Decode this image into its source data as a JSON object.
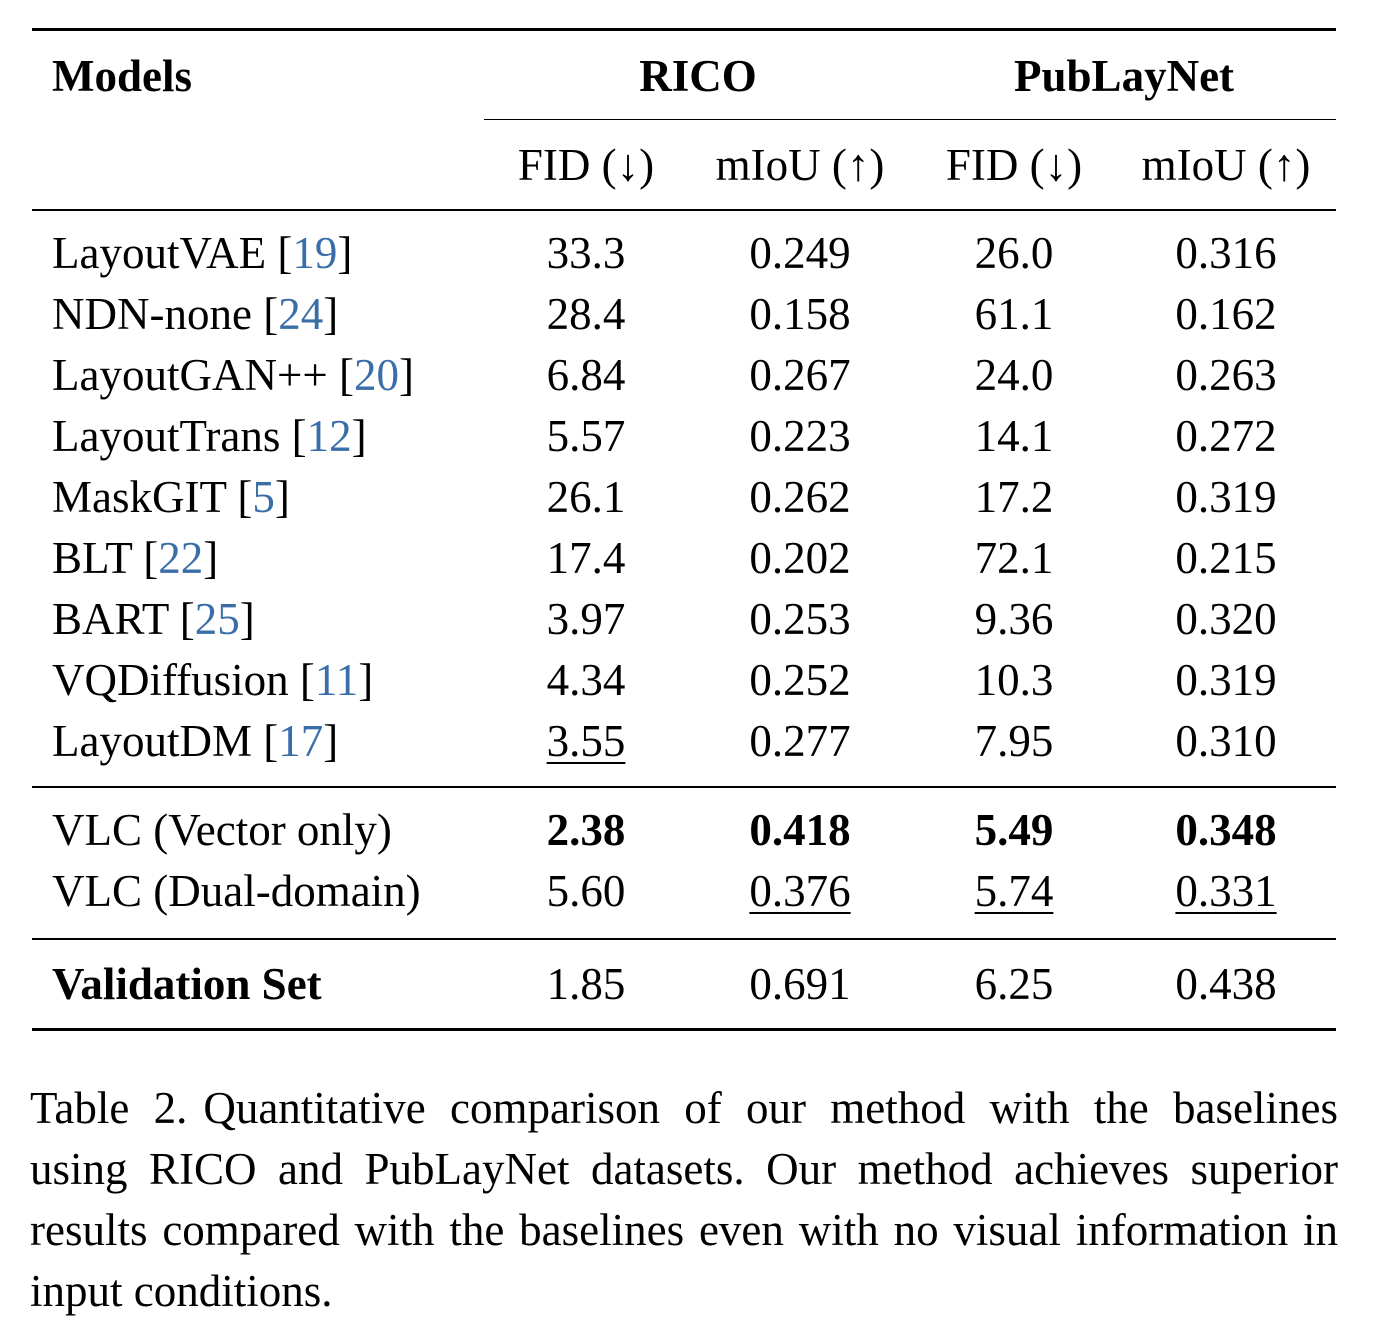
{
  "table": {
    "header": {
      "models_label": "Models",
      "groups": [
        "RICO",
        "PubLayNet"
      ],
      "metrics": [
        "FID (↓)",
        "mIoU (↑)",
        "FID (↓)",
        "mIoU (↑)"
      ]
    },
    "baselines": [
      {
        "name": "LayoutVAE ",
        "ref": "19",
        "values": [
          "33.3",
          "0.249",
          "26.0",
          "0.316"
        ]
      },
      {
        "name": "NDN-none ",
        "ref": "24",
        "values": [
          "28.4",
          "0.158",
          "61.1",
          "0.162"
        ]
      },
      {
        "name": "LayoutGAN++ ",
        "ref": "20",
        "values": [
          "6.84",
          "0.267",
          "24.0",
          "0.263"
        ]
      },
      {
        "name": "LayoutTrans ",
        "ref": "12",
        "values": [
          "5.57",
          "0.223",
          "14.1",
          "0.272"
        ]
      },
      {
        "name": "MaskGIT ",
        "ref": "5",
        "values": [
          "26.1",
          "0.262",
          "17.2",
          "0.319"
        ]
      },
      {
        "name": "BLT ",
        "ref": "22",
        "values": [
          "17.4",
          "0.202",
          "72.1",
          "0.215"
        ]
      },
      {
        "name": "BART ",
        "ref": "25",
        "values": [
          "3.97",
          "0.253",
          "9.36",
          "0.320"
        ]
      },
      {
        "name": "VQDiffusion ",
        "ref": "11",
        "values": [
          "4.34",
          "0.252",
          "10.3",
          "0.319"
        ]
      },
      {
        "name": "LayoutDM ",
        "ref": "17",
        "values": [
          "3.55",
          "0.277",
          "7.95",
          "0.310"
        ]
      }
    ],
    "ours": [
      {
        "name": "VLC (Vector only)",
        "values": [
          "2.38",
          "0.418",
          "5.49",
          "0.348"
        ]
      },
      {
        "name": "VLC (Dual-domain)",
        "values": [
          "5.60",
          "0.376",
          "5.74",
          "0.331"
        ]
      }
    ],
    "validation": {
      "name": "Validation Set",
      "values": [
        "1.85",
        "0.691",
        "6.25",
        "0.438"
      ]
    }
  },
  "caption": {
    "label": "Table 2.",
    "text": "Quantitative comparison of our method with the baselines using RICO and PubLayNet datasets. Our method achieves superior results compared with the baselines even with no visual information in input conditions."
  }
}
